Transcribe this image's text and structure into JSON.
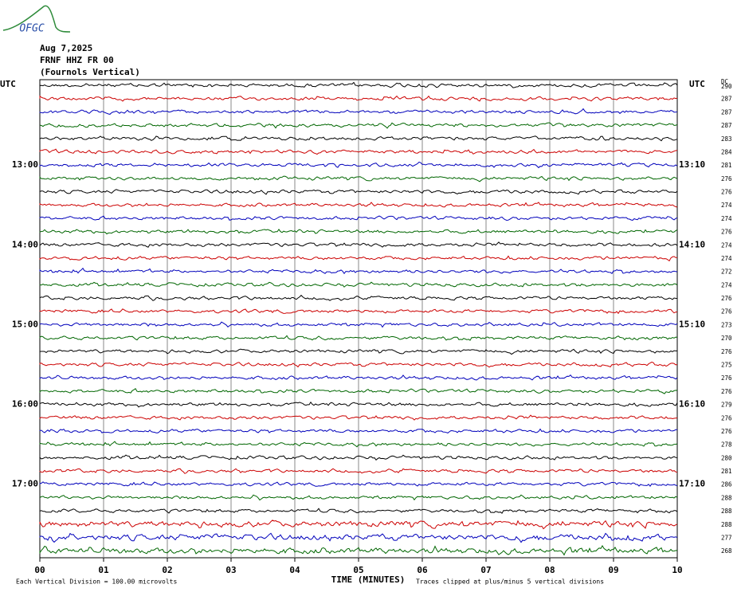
{
  "header": {
    "logo": "OFGC",
    "date": "Aug 7,2025",
    "station": "FRNF HHZ FR 00",
    "location": "(Fournols Vertical)",
    "utc_left": "UTC",
    "utc_right": "UTC",
    "dc_header": "DC"
  },
  "rows": [
    {
      "dc": 290
    },
    {
      "dc": 287
    },
    {
      "dc": 287
    },
    {
      "dc": 287
    },
    {
      "dc": 283
    },
    {
      "dc": 284
    },
    {
      "dc": 281,
      "left": "13:00",
      "right": "13:10"
    },
    {
      "dc": 276
    },
    {
      "dc": 276
    },
    {
      "dc": 274
    },
    {
      "dc": 274
    },
    {
      "dc": 276
    },
    {
      "dc": 274,
      "left": "14:00",
      "right": "14:10"
    },
    {
      "dc": 274
    },
    {
      "dc": 272
    },
    {
      "dc": 274
    },
    {
      "dc": 276
    },
    {
      "dc": 276
    },
    {
      "dc": 273,
      "left": "15:00",
      "right": "15:10"
    },
    {
      "dc": 270
    },
    {
      "dc": 276
    },
    {
      "dc": 275
    },
    {
      "dc": 276
    },
    {
      "dc": 276
    },
    {
      "dc": 279,
      "left": "16:00",
      "right": "16:10"
    },
    {
      "dc": 276
    },
    {
      "dc": 276
    },
    {
      "dc": 278
    },
    {
      "dc": 280
    },
    {
      "dc": 281
    },
    {
      "dc": 286,
      "left": "17:00",
      "right": "17:10"
    },
    {
      "dc": 288
    },
    {
      "dc": 288
    },
    {
      "dc": 288
    },
    {
      "dc": 277
    },
    {
      "dc": 268
    }
  ],
  "x_axis": {
    "ticks": [
      "00",
      "01",
      "02",
      "03",
      "04",
      "05",
      "06",
      "07",
      "08",
      "09",
      "10"
    ],
    "label": "TIME (MINUTES)"
  },
  "footer": {
    "scale": "Each Vertical Division =  100.00 microvolts",
    "clip": "Traces clipped at plus/minus 5 vertical divisions"
  }
}
